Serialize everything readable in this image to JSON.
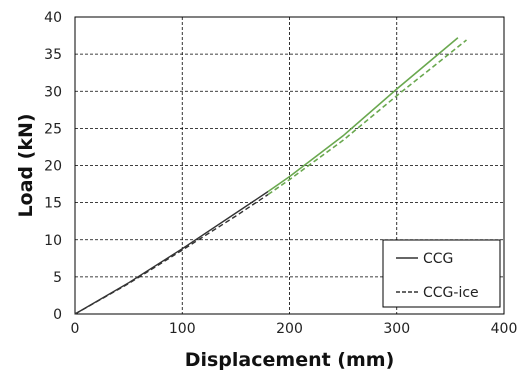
{
  "chart_data": {
    "type": "line",
    "xlabel": "Displacement (mm)",
    "ylabel": "Load (kN)",
    "xlim": [
      0,
      400
    ],
    "ylim": [
      0,
      40
    ],
    "x_ticks": [
      0,
      100,
      200,
      300,
      400
    ],
    "y_ticks": [
      0,
      5,
      10,
      15,
      20,
      25,
      30,
      35,
      40
    ],
    "x_tick_labels": [
      "0",
      "100",
      "200",
      "300",
      "400"
    ],
    "y_tick_labels": [
      "0",
      "5",
      "10",
      "15",
      "20",
      "25",
      "30",
      "35",
      "40"
    ],
    "grid": "dashed",
    "legend_position": "bottom-right",
    "colors": {
      "early": "#333333",
      "late": "#6aa84f"
    },
    "series": [
      {
        "name": "CCG",
        "style": "solid",
        "color_switch_x": 180,
        "points": [
          [
            0,
            0
          ],
          [
            50,
            4.2
          ],
          [
            100,
            8.8
          ],
          [
            150,
            13.6
          ],
          [
            180,
            16.5
          ],
          [
            200,
            18.5
          ],
          [
            250,
            24.0
          ],
          [
            300,
            30.3
          ],
          [
            357,
            37.2
          ]
        ]
      },
      {
        "name": "CCG-ice",
        "style": "dashed",
        "color_switch_x": 180,
        "points": [
          [
            0,
            0
          ],
          [
            50,
            4.1
          ],
          [
            100,
            8.6
          ],
          [
            150,
            13.2
          ],
          [
            180,
            16.1
          ],
          [
            200,
            18.1
          ],
          [
            250,
            23.4
          ],
          [
            300,
            29.4
          ],
          [
            365,
            36.9
          ]
        ]
      }
    ]
  }
}
